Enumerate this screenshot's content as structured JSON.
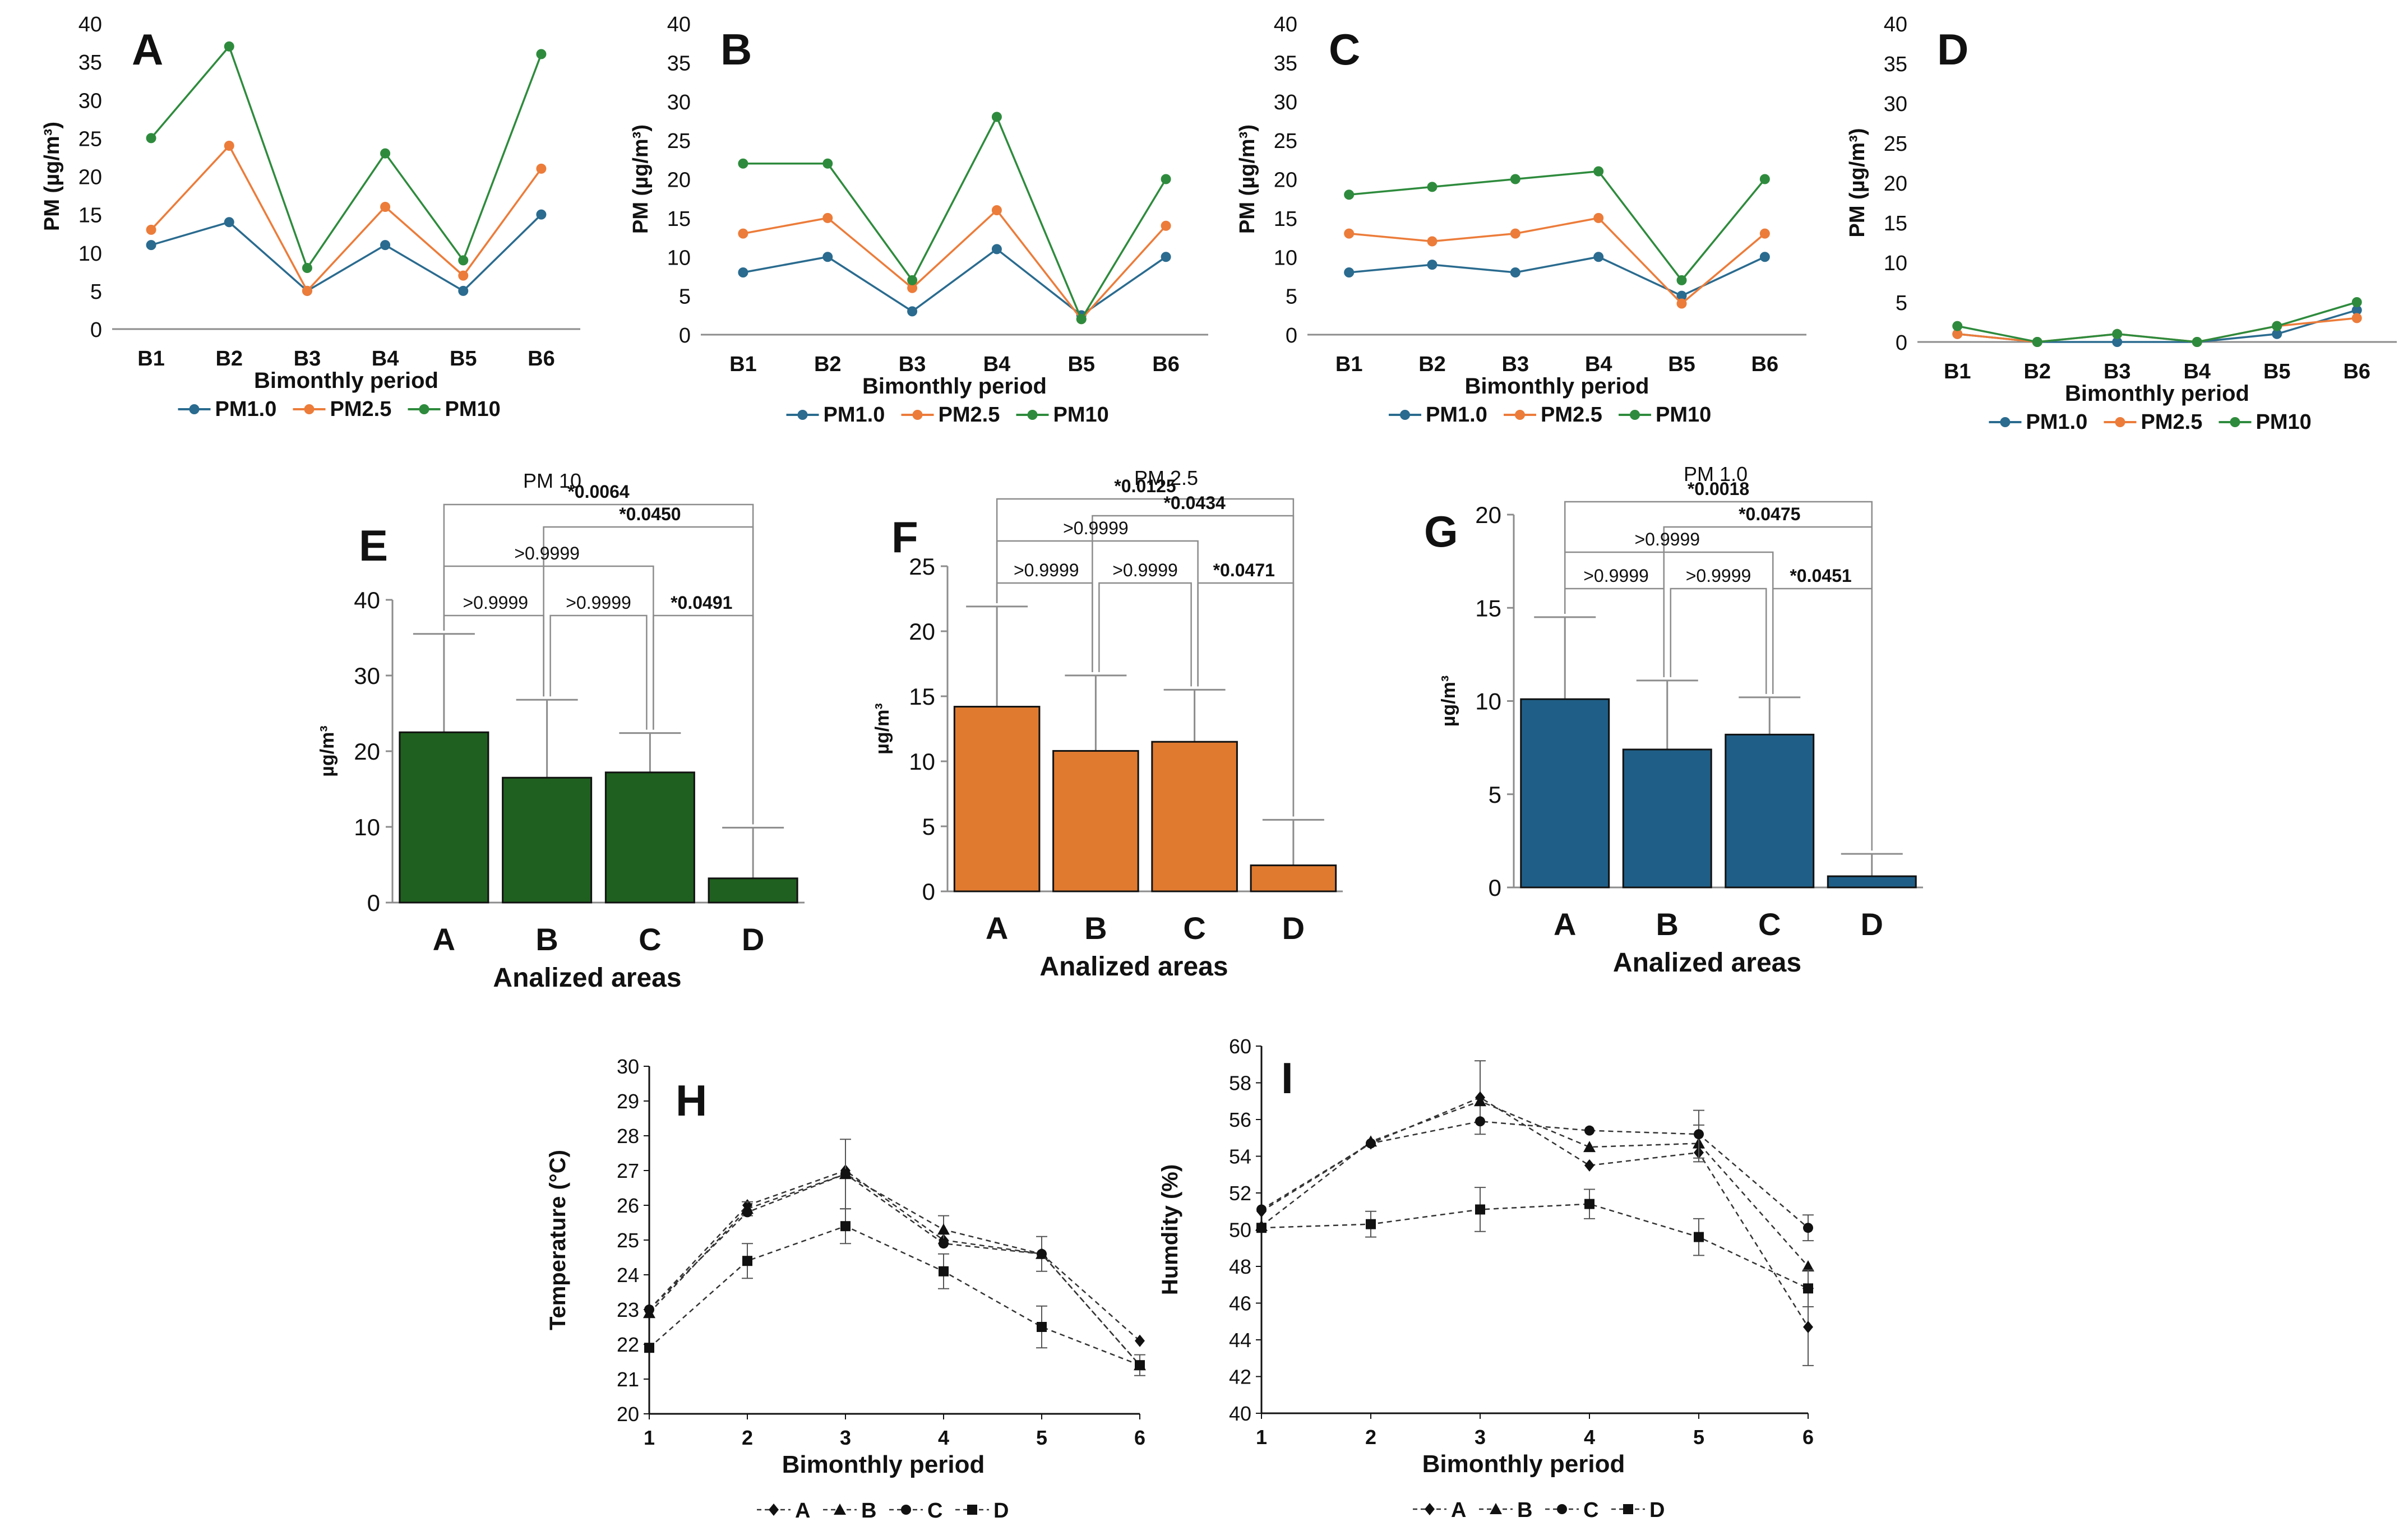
{
  "colors": {
    "pm1": "#2a6b8f",
    "pm25": "#ec7c3a",
    "pm10": "#2e8b3d",
    "barE": "#1f5f1f",
    "barF": "#e07a2f",
    "barG": "#1f5f87",
    "axis": "#8c8c8c",
    "ink": "#111111"
  },
  "chart_data": [
    {
      "id": "A",
      "type": "line",
      "title": "A",
      "xlabel": "Bimonthly period",
      "ylabel": "PM (µg/m³)",
      "categories": [
        "B1",
        "B2",
        "B3",
        "B4",
        "B5",
        "B6"
      ],
      "ylim": [
        0,
        40
      ],
      "yticks": [
        0,
        5,
        10,
        15,
        20,
        25,
        30,
        35,
        40
      ],
      "legend": [
        "PM1.0",
        "PM2.5",
        "PM10"
      ],
      "series": [
        {
          "name": "PM1.0",
          "values": [
            11,
            14,
            5,
            11,
            5,
            15
          ]
        },
        {
          "name": "PM2.5",
          "values": [
            13,
            24,
            5,
            16,
            7,
            21
          ]
        },
        {
          "name": "PM10",
          "values": [
            25,
            37,
            8,
            23,
            9,
            36
          ]
        }
      ]
    },
    {
      "id": "B",
      "type": "line",
      "title": "B",
      "xlabel": "Bimonthly period",
      "ylabel": "PM (µg/m³)",
      "categories": [
        "B1",
        "B2",
        "B3",
        "B4",
        "B5",
        "B6"
      ],
      "ylim": [
        0,
        40
      ],
      "yticks": [
        0,
        5,
        10,
        15,
        20,
        25,
        30,
        35,
        40
      ],
      "legend": [
        "PM1.0",
        "PM2.5",
        "PM10"
      ],
      "series": [
        {
          "name": "PM1.0",
          "values": [
            8,
            10,
            3,
            11,
            2.5,
            10
          ]
        },
        {
          "name": "PM2.5",
          "values": [
            13,
            15,
            6,
            16,
            2,
            14
          ]
        },
        {
          "name": "PM10",
          "values": [
            22,
            22,
            7,
            28,
            2,
            20
          ]
        }
      ]
    },
    {
      "id": "C",
      "type": "line",
      "title": "C",
      "xlabel": "Bimonthly period",
      "ylabel": "PM (µg/m³)",
      "categories": [
        "B1",
        "B2",
        "B3",
        "B4",
        "B5",
        "B6"
      ],
      "ylim": [
        0,
        40
      ],
      "yticks": [
        0,
        5,
        10,
        15,
        20,
        25,
        30,
        35,
        40
      ],
      "legend": [
        "PM1.0",
        "PM2.5",
        "PM10"
      ],
      "series": [
        {
          "name": "PM1.0",
          "values": [
            8,
            9,
            8,
            10,
            5,
            10
          ]
        },
        {
          "name": "PM2.5",
          "values": [
            13,
            12,
            13,
            15,
            4,
            13
          ]
        },
        {
          "name": "PM10",
          "values": [
            18,
            19,
            20,
            21,
            7,
            20
          ]
        }
      ]
    },
    {
      "id": "D",
      "type": "line",
      "title": "D",
      "xlabel": "Bimonthly period",
      "ylabel": "PM (µg/m³)",
      "categories": [
        "B1",
        "B2",
        "B3",
        "B4",
        "B5",
        "B6"
      ],
      "ylim": [
        0,
        40
      ],
      "yticks": [
        0,
        5,
        10,
        15,
        20,
        25,
        30,
        35,
        40
      ],
      "legend": [
        "PM1.0",
        "PM2.5",
        "PM10"
      ],
      "series": [
        {
          "name": "PM1.0",
          "values": [
            1,
            0,
            0,
            0,
            1,
            4
          ]
        },
        {
          "name": "PM2.5",
          "values": [
            1,
            0,
            1,
            0,
            2,
            3
          ]
        },
        {
          "name": "PM10",
          "values": [
            2,
            0,
            1,
            0,
            2,
            5
          ]
        }
      ]
    },
    {
      "id": "E",
      "type": "bar",
      "title": "E",
      "subtitle": "PM 10",
      "xlabel": "Analized areas",
      "ylabel": "µg/m³",
      "categories": [
        "A",
        "B",
        "C",
        "D"
      ],
      "values": [
        22.5,
        16.5,
        17.2,
        3.2
      ],
      "errors": [
        13,
        10.3,
        5.2,
        6.7
      ],
      "ylim": [
        0,
        40
      ],
      "yticks": [
        0,
        10,
        20,
        30,
        40
      ],
      "comparisons": [
        {
          "from": 0,
          "to": 3,
          "label": "*0.0064",
          "bold": true,
          "level": 4
        },
        {
          "from": 1,
          "to": 3,
          "label": "*0.0450",
          "bold": true,
          "level": 3
        },
        {
          "from": 0,
          "to": 2,
          "label": ">0.9999",
          "bold": false,
          "level": 2
        },
        {
          "from": 0,
          "to": 1,
          "label": ">0.9999",
          "bold": false,
          "level": 1
        },
        {
          "from": 1,
          "to": 2,
          "label": ">0.9999",
          "bold": false,
          "level": 1
        },
        {
          "from": 2,
          "to": 3,
          "label": "*0.0491",
          "bold": true,
          "level": 1
        }
      ]
    },
    {
      "id": "F",
      "type": "bar",
      "title": "F",
      "subtitle": "PM 2.5",
      "xlabel": "Analized areas",
      "ylabel": "µg/m³",
      "categories": [
        "A",
        "B",
        "C",
        "D"
      ],
      "values": [
        14.2,
        10.8,
        11.5,
        2
      ],
      "errors": [
        7.7,
        5.8,
        4,
        3.5
      ],
      "ylim": [
        0,
        25
      ],
      "yticks": [
        0,
        5,
        10,
        15,
        20,
        25
      ],
      "comparisons": [
        {
          "from": 0,
          "to": 3,
          "label": "*0.0125",
          "bold": true,
          "level": 4
        },
        {
          "from": 1,
          "to": 3,
          "label": "*0.0434",
          "bold": true,
          "level": 3
        },
        {
          "from": 0,
          "to": 2,
          "label": ">0.9999",
          "bold": false,
          "level": 2
        },
        {
          "from": 0,
          "to": 1,
          "label": ">0.9999",
          "bold": false,
          "level": 1
        },
        {
          "from": 1,
          "to": 2,
          "label": ">0.9999",
          "bold": false,
          "level": 1
        },
        {
          "from": 2,
          "to": 3,
          "label": "*0.0471",
          "bold": true,
          "level": 1
        }
      ]
    },
    {
      "id": "G",
      "type": "bar",
      "title": "G",
      "subtitle": "PM 1.0",
      "xlabel": "Analized areas",
      "ylabel": "µg/m³",
      "categories": [
        "A",
        "B",
        "C",
        "D"
      ],
      "values": [
        10.1,
        7.4,
        8.2,
        0.6
      ],
      "errors": [
        4.4,
        3.7,
        2,
        1.2
      ],
      "ylim": [
        0,
        20
      ],
      "yticks": [
        0,
        5,
        10,
        15,
        20
      ],
      "comparisons": [
        {
          "from": 0,
          "to": 3,
          "label": "*0.0018",
          "bold": true,
          "level": 4
        },
        {
          "from": 1,
          "to": 3,
          "label": "*0.0475",
          "bold": true,
          "level": 3
        },
        {
          "from": 0,
          "to": 2,
          "label": ">0.9999",
          "bold": false,
          "level": 2
        },
        {
          "from": 0,
          "to": 1,
          "label": ">0.9999",
          "bold": false,
          "level": 1
        },
        {
          "from": 1,
          "to": 2,
          "label": ">0.9999",
          "bold": false,
          "level": 1
        },
        {
          "from": 2,
          "to": 3,
          "label": "*0.0451",
          "bold": true,
          "level": 1
        }
      ]
    },
    {
      "id": "H",
      "type": "line",
      "title": "H",
      "xlabel": "Bimonthly period",
      "ylabel": "Temperature (°C)",
      "x": [
        1,
        2,
        3,
        4,
        5,
        6
      ],
      "ylim": [
        20,
        30
      ],
      "yticks": [
        20,
        21,
        22,
        23,
        24,
        25,
        26,
        27,
        28,
        29,
        30
      ],
      "decimals": 1,
      "legend": [
        "A",
        "B",
        "C",
        "D"
      ],
      "series": [
        {
          "name": "A",
          "marker": "diamond",
          "values": [
            23,
            26,
            27,
            25,
            24.6,
            22.1
          ],
          "errors": [
            0,
            0,
            0,
            0,
            0,
            0
          ]
        },
        {
          "name": "B",
          "marker": "triangle",
          "values": [
            22.9,
            25.9,
            26.9,
            25.3,
            24.6,
            21.4
          ],
          "errors": [
            0,
            0.2,
            0,
            0.4,
            0,
            0
          ]
        },
        {
          "name": "C",
          "marker": "circle",
          "values": [
            23,
            25.8,
            26.9,
            24.9,
            24.6,
            21.4
          ],
          "errors": [
            0,
            0,
            1,
            0,
            0.5,
            0
          ]
        },
        {
          "name": "D",
          "marker": "square",
          "values": [
            21.9,
            24.4,
            25.4,
            24.1,
            22.5,
            21.4
          ],
          "errors": [
            0,
            0.5,
            0.5,
            0.5,
            0.6,
            0.3
          ]
        }
      ]
    },
    {
      "id": "I",
      "type": "line",
      "title": "I",
      "xlabel": "Bimonthly period",
      "ylabel": "Humdity (%)",
      "x": [
        1,
        2,
        3,
        4,
        5,
        6
      ],
      "ylim": [
        40,
        60
      ],
      "yticks": [
        40,
        42,
        44,
        46,
        48,
        50,
        52,
        54,
        56,
        58,
        60
      ],
      "decimals": 1,
      "legend": [
        "A",
        "B",
        "C",
        "D"
      ],
      "series": [
        {
          "name": "A",
          "marker": "diamond",
          "values": [
            51,
            54.7,
            57.2,
            53.5,
            54.2,
            44.7
          ],
          "errors": [
            0,
            0,
            2,
            0,
            0,
            2.1
          ]
        },
        {
          "name": "B",
          "marker": "triangle",
          "values": [
            50.2,
            54.8,
            57,
            54.5,
            54.7,
            48
          ],
          "errors": [
            0,
            0,
            0,
            0,
            1,
            0
          ]
        },
        {
          "name": "C",
          "marker": "circle",
          "values": [
            51.1,
            54.7,
            55.9,
            55.4,
            55.2,
            50.1
          ],
          "errors": [
            0,
            0,
            0,
            0,
            1.3,
            0.7
          ]
        },
        {
          "name": "D",
          "marker": "square",
          "values": [
            50.1,
            50.3,
            51.1,
            51.4,
            49.6,
            46.8
          ],
          "errors": [
            0,
            0.7,
            1.2,
            0.8,
            1,
            1
          ]
        }
      ]
    }
  ]
}
